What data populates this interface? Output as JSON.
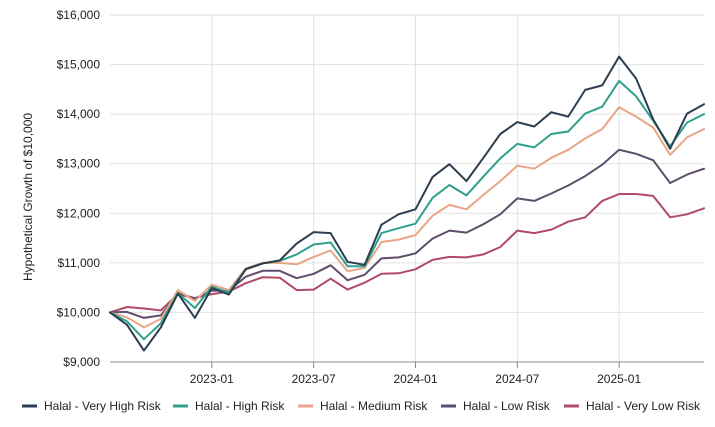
{
  "chart_data": {
    "type": "line",
    "title": "",
    "ylabel": "Hypothetical Growth of $10,000",
    "xlabel": "",
    "ylim": [
      9000,
      16000
    ],
    "yticks": [
      "$9,000",
      "$10,000",
      "$11,000",
      "$12,000",
      "$13,000",
      "$14,000",
      "$15,000",
      "$16,000"
    ],
    "ytick_values": [
      9000,
      10000,
      11000,
      12000,
      13000,
      14000,
      15000,
      16000
    ],
    "xticks": [
      "2023-01",
      "2023-07",
      "2024-01",
      "2024-07",
      "2025-01"
    ],
    "xtick_dates": [
      "2023-01",
      "2023-07",
      "2024-01",
      "2024-07",
      "2025-01"
    ],
    "x": [
      "2022-07",
      "2022-08",
      "2022-09",
      "2022-10",
      "2022-11",
      "2022-12",
      "2023-01",
      "2023-02",
      "2023-03",
      "2023-04",
      "2023-05",
      "2023-06",
      "2023-07",
      "2023-08",
      "2023-09",
      "2023-10",
      "2023-11",
      "2023-12",
      "2024-01",
      "2024-02",
      "2024-03",
      "2024-04",
      "2024-05",
      "2024-06",
      "2024-07",
      "2024-08",
      "2024-09",
      "2024-10",
      "2024-11",
      "2024-12",
      "2025-01",
      "2025-02",
      "2025-03",
      "2025-04",
      "2025-05",
      "2025-06"
    ],
    "grid": true,
    "legend_position": "bottom",
    "series": [
      {
        "name": "Halal - Very High Risk",
        "color": "#2d3e50",
        "values": [
          10000,
          9750,
          9230,
          9700,
          10380,
          9890,
          10490,
          10360,
          10870,
          10990,
          11050,
          11390,
          11620,
          11600,
          11020,
          10960,
          11770,
          11980,
          12080,
          12730,
          12990,
          12650,
          13120,
          13600,
          13840,
          13750,
          14040,
          13950,
          14490,
          14580,
          15160,
          14720,
          13900,
          13300,
          14010,
          14200
        ]
      },
      {
        "name": "Halal - High Risk",
        "color": "#2ea08b",
        "values": [
          10000,
          9820,
          9460,
          9780,
          10390,
          10090,
          10520,
          10400,
          10870,
          10990,
          11040,
          11170,
          11370,
          11410,
          10930,
          10930,
          11600,
          11700,
          11790,
          12310,
          12570,
          12360,
          12740,
          13110,
          13400,
          13330,
          13600,
          13650,
          14010,
          14150,
          14670,
          14360,
          13870,
          13350,
          13830,
          14000
        ]
      },
      {
        "name": "Halal - Medium Risk",
        "color": "#e9a585",
        "values": [
          10000,
          9900,
          9700,
          9870,
          10450,
          10230,
          10560,
          10450,
          10890,
          11000,
          11000,
          10970,
          11120,
          11250,
          10830,
          10900,
          11420,
          11470,
          11560,
          11950,
          12170,
          12080,
          12370,
          12650,
          12960,
          12900,
          13120,
          13280,
          13510,
          13700,
          14140,
          13950,
          13730,
          13180,
          13530,
          13700
        ]
      },
      {
        "name": "Halal - Low Risk",
        "color": "#5e4e6c",
        "values": [
          10000,
          10010,
          9890,
          9940,
          10390,
          10280,
          10440,
          10440,
          10720,
          10840,
          10840,
          10690,
          10780,
          10950,
          10650,
          10760,
          11090,
          11110,
          11190,
          11490,
          11650,
          11610,
          11780,
          11980,
          12300,
          12250,
          12400,
          12560,
          12750,
          12980,
          13280,
          13200,
          13070,
          12610,
          12780,
          12900
        ]
      },
      {
        "name": "Halal - Very Low Risk",
        "color": "#b04a66",
        "values": [
          10000,
          10110,
          10080,
          10040,
          10370,
          10290,
          10370,
          10420,
          10590,
          10710,
          10700,
          10450,
          10460,
          10680,
          10460,
          10600,
          10780,
          10790,
          10870,
          11060,
          11120,
          11110,
          11170,
          11320,
          11650,
          11600,
          11670,
          11830,
          11920,
          12250,
          12390,
          12390,
          12350,
          11920,
          11980,
          12100
        ]
      }
    ]
  }
}
